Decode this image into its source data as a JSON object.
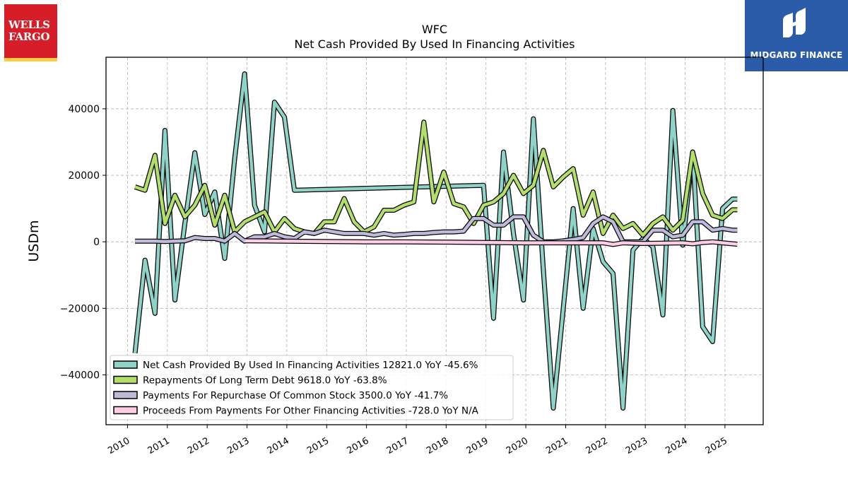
{
  "logos": {
    "left": {
      "line1": "WELLS",
      "line2": "FARGO"
    },
    "right": {
      "name": "MIDGARD FINANCE"
    }
  },
  "chart_data": {
    "type": "line",
    "title": "WFC",
    "subtitle": "Net Cash Provided By Used In Financing Activities",
    "xlabel": "",
    "ylabel": "USDm",
    "xlim": [
      2009.46,
      2025.96
    ],
    "ylim": [
      -55000,
      55500
    ],
    "yticks": [
      -40000,
      -20000,
      0,
      20000,
      40000
    ],
    "ytick_labels": [
      "−40000",
      "−20000",
      "0",
      "20000",
      "40000"
    ],
    "xticks": [
      2010,
      2011,
      2012,
      2013,
      2014,
      2015,
      2016,
      2017,
      2018,
      2019,
      2020,
      2021,
      2022,
      2023,
      2024,
      2025
    ],
    "xtick_labels": [
      "2010",
      "2011",
      "2012",
      "2013",
      "2014",
      "2015",
      "2016",
      "2017",
      "2018",
      "2019",
      "2020",
      "2021",
      "2022",
      "2023",
      "2024",
      "2025"
    ],
    "grid": true,
    "legend_position": "lower-left",
    "series": [
      {
        "name": "Net Cash Provided By Used In Financing Activities",
        "legend": "Net Cash Provided By Used In Financing Activities  12821.0 YoY -45.6%",
        "color": "#8dd3c7",
        "x": [
          2010.19,
          2010.44,
          2010.69,
          2010.94,
          2011.19,
          2011.44,
          2011.69,
          2011.94,
          2012.19,
          2012.44,
          2012.69,
          2012.94,
          2013.19,
          2013.44,
          2013.69,
          2013.94,
          2014.19,
          2018.94,
          2019.19,
          2019.44,
          2019.69,
          2019.94,
          2020.19,
          2020.44,
          2020.69,
          2020.94,
          2021.19,
          2021.44,
          2021.69,
          2021.94,
          2022.19,
          2022.44,
          2022.69,
          2022.94,
          2023.19,
          2023.44,
          2023.69,
          2023.94,
          2024.19,
          2024.44,
          2024.69,
          2024.94,
          2025.19,
          2025.31
        ],
        "y": [
          -33500,
          -5500,
          -21500,
          33500,
          -17500,
          5500,
          26800,
          8200,
          15000,
          -5000,
          25000,
          50500,
          11000,
          3000,
          42000,
          37500,
          15500,
          17000,
          -23000,
          27000,
          2500,
          -17500,
          37000,
          -8500,
          -50000,
          -20000,
          10000,
          -20000,
          4000,
          -6000,
          -9500,
          -50000,
          -2500,
          1000,
          -1500,
          -22000,
          39500,
          -1000,
          27000,
          -25500,
          -30000,
          10000,
          12821,
          12821
        ]
      },
      {
        "name": "Repayments Of Long Term Debt",
        "legend": "Repayments Of Long Term Debt  9618.0 YoY -63.8%",
        "color": "#b3de69",
        "x": [
          2010.19,
          2010.44,
          2010.69,
          2010.94,
          2011.19,
          2011.44,
          2011.69,
          2011.94,
          2012.19,
          2012.44,
          2012.69,
          2012.94,
          2013.19,
          2013.44,
          2013.69,
          2013.94,
          2014.19,
          2014.44,
          2014.69,
          2014.94,
          2015.19,
          2015.44,
          2015.69,
          2015.94,
          2016.19,
          2016.44,
          2016.69,
          2016.94,
          2017.19,
          2017.44,
          2017.69,
          2017.94,
          2018.19,
          2018.44,
          2018.69,
          2018.94,
          2019.19,
          2019.44,
          2019.69,
          2019.94,
          2020.19,
          2020.44,
          2020.69,
          2020.94,
          2021.19,
          2021.44,
          2021.69,
          2021.94,
          2022.19,
          2022.44,
          2022.69,
          2022.94,
          2023.19,
          2023.44,
          2023.69,
          2023.94,
          2024.19,
          2024.44,
          2024.69,
          2024.94,
          2025.19,
          2025.31
        ],
        "y": [
          16500,
          15500,
          26000,
          5500,
          14000,
          7500,
          11000,
          17000,
          5000,
          14000,
          3000,
          6000,
          7500,
          9000,
          3000,
          7000,
          4000,
          3000,
          2500,
          6000,
          6000,
          13000,
          6000,
          3000,
          4500,
          9500,
          9500,
          11000,
          12000,
          36000,
          12000,
          21000,
          11500,
          10500,
          5500,
          11000,
          12000,
          14500,
          20000,
          14500,
          17000,
          27500,
          16500,
          19500,
          22000,
          8000,
          15000,
          2500,
          8000,
          4000,
          5500,
          2000,
          5500,
          7500,
          3500,
          6500,
          27000,
          14500,
          8000,
          7000,
          9618,
          9618
        ]
      },
      {
        "name": "Payments For Repurchase Of Common Stock",
        "legend": "Payments For Repurchase Of Common Stock  3500.0 YoY -41.7%",
        "color": "#bebada",
        "x": [
          2010.19,
          2010.44,
          2010.69,
          2010.94,
          2011.19,
          2011.44,
          2011.69,
          2011.94,
          2012.19,
          2012.44,
          2012.69,
          2012.94,
          2013.19,
          2013.44,
          2013.69,
          2013.94,
          2014.19,
          2014.44,
          2014.69,
          2014.94,
          2015.19,
          2015.44,
          2015.69,
          2015.94,
          2016.19,
          2016.44,
          2016.69,
          2016.94,
          2017.19,
          2017.44,
          2017.69,
          2017.94,
          2018.19,
          2018.44,
          2018.69,
          2018.94,
          2019.19,
          2019.44,
          2019.69,
          2019.94,
          2020.19,
          2020.44,
          2020.69,
          2020.94,
          2021.19,
          2021.44,
          2021.69,
          2021.94,
          2022.19,
          2022.44,
          2022.69,
          2022.94,
          2023.19,
          2023.44,
          2023.69,
          2023.94,
          2024.19,
          2024.44,
          2024.69,
          2024.94,
          2025.19,
          2025.31
        ],
        "y": [
          200,
          200,
          200,
          100,
          200,
          300,
          1300,
          1000,
          1000,
          200,
          2500,
          200,
          1500,
          1500,
          2500,
          1500,
          1000,
          3000,
          2500,
          3500,
          3000,
          2500,
          2500,
          2500,
          2000,
          2500,
          2000,
          2200,
          2500,
          2500,
          2800,
          3000,
          3000,
          3200,
          7000,
          7000,
          5000,
          5000,
          7500,
          7500,
          2000,
          0,
          0,
          300,
          700,
          1300,
          5500,
          7500,
          6000,
          0,
          0,
          0,
          3500,
          3500,
          1500,
          2000,
          6000,
          6000,
          3500,
          4000,
          3500,
          3500
        ]
      },
      {
        "name": "Proceeds From Payments For Other Financing Activities",
        "legend": "Proceeds From Payments For Other Financing Activities  -728.0 YoY N/A",
        "color": "#fccde5",
        "x": [
          2012.94,
          2013.94,
          2014.94,
          2015.94,
          2016.94,
          2017.94,
          2018.94,
          2019.94,
          2020.94,
          2021.94,
          2022.19,
          2022.44,
          2022.94,
          2023.44,
          2023.94,
          2024.19,
          2024.44,
          2024.69,
          2024.94,
          2025.31
        ],
        "y": [
          300,
          200,
          100,
          0,
          0,
          -100,
          -200,
          -300,
          -300,
          -300,
          -800,
          -300,
          -500,
          -400,
          -300,
          -600,
          -200,
          0,
          -300,
          -728
        ]
      }
    ]
  }
}
